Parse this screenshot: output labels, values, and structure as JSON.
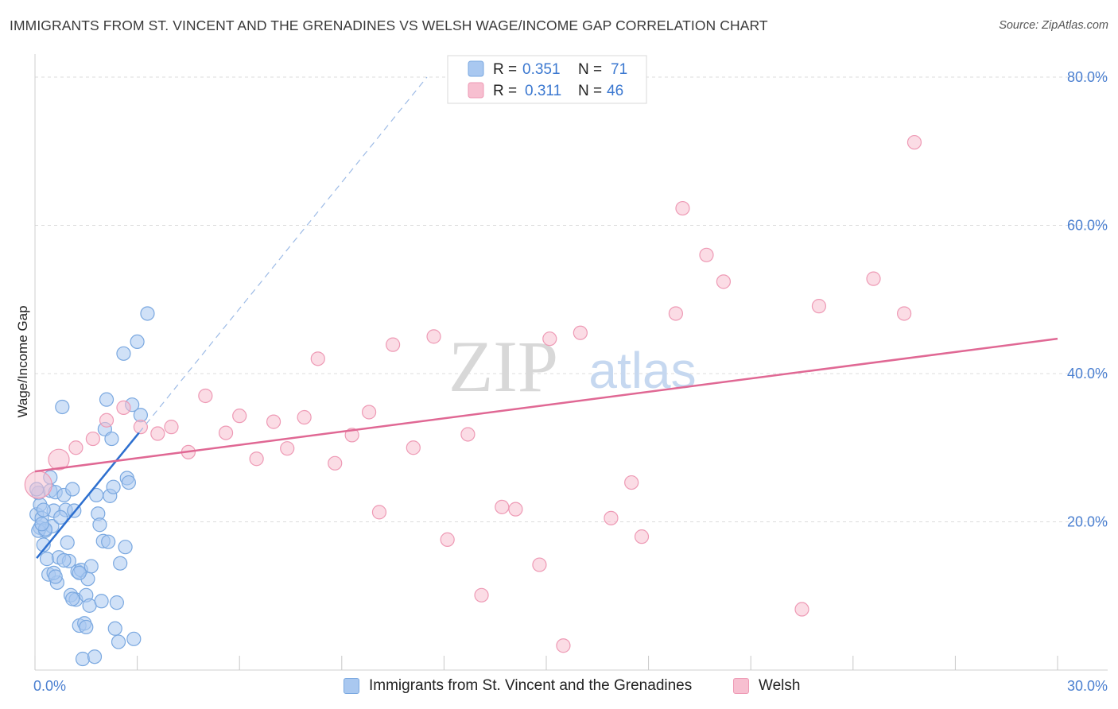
{
  "title": "IMMIGRANTS FROM ST. VINCENT AND THE GRENADINES VS WELSH WAGE/INCOME GAP CORRELATION CHART",
  "source": "Source: ZipAtlas.com",
  "watermark": {
    "zip": "ZIP",
    "atlas": "atlas"
  },
  "legend": {
    "r_label": "R =",
    "n_label": "N =",
    "rows": [
      {
        "series": "Immigrants from St. Vincent and the Grenadines",
        "r": "0.351",
        "n": "71"
      },
      {
        "series": "Welsh",
        "r": "0.311",
        "n": "46"
      }
    ]
  },
  "colors": {
    "blue_fill": "#a9c8f0",
    "blue_stroke": "#7aa8e0",
    "blue_line": "#2d6fcf",
    "pink_fill": "#f7bfd0",
    "pink_stroke": "#ee9ab5",
    "pink_line": "#e06894",
    "tick_text": "#4a7fd0",
    "grid": "#dcdcdc"
  },
  "chart_data": {
    "type": "scatter",
    "title": "IMMIGRANTS FROM ST. VINCENT AND THE GRENADINES VS WELSH WAGE/INCOME GAP CORRELATION CHART",
    "xlabel": "",
    "ylabel": "Wage/Income Gap",
    "xlim": [
      0,
      30
    ],
    "ylim": [
      0,
      80
    ],
    "x_tick_labels": [
      "0.0%",
      "30.0%"
    ],
    "y_ticks": [
      20,
      40,
      60,
      80
    ],
    "y_tick_labels": [
      "20.0%",
      "40.0%",
      "60.0%",
      "80.0%"
    ],
    "grid": true,
    "legend_position": "top-center",
    "series": [
      {
        "name": "Immigrants from St. Vincent and the Grenadines",
        "color": "#a9c8f0",
        "trend": {
          "x0": 0.05,
          "y0": 15.1,
          "x1": 3.05,
          "y1": 32.0,
          "dashed_to_x": 11.5,
          "dashed_to_y": 80.0
        },
        "points": [
          [
            0.05,
            21.0
          ],
          [
            0.1,
            23.9
          ],
          [
            0.15,
            19.2
          ],
          [
            0.2,
            20.5
          ],
          [
            0.25,
            16.9
          ],
          [
            0.3,
            18.8
          ],
          [
            0.35,
            15.0
          ],
          [
            0.4,
            12.9
          ],
          [
            0.45,
            24.2
          ],
          [
            0.5,
            19.4
          ],
          [
            0.55,
            21.5
          ],
          [
            0.6,
            24.0
          ],
          [
            0.65,
            11.8
          ],
          [
            0.7,
            15.2
          ],
          [
            0.8,
            35.5
          ],
          [
            0.85,
            23.6
          ],
          [
            0.9,
            21.6
          ],
          [
            0.95,
            17.2
          ],
          [
            1.0,
            14.7
          ],
          [
            1.05,
            10.1
          ],
          [
            1.1,
            24.4
          ],
          [
            1.15,
            21.5
          ],
          [
            1.2,
            9.5
          ],
          [
            1.25,
            13.3
          ],
          [
            1.3,
            6.0
          ],
          [
            1.35,
            13.5
          ],
          [
            1.4,
            1.5
          ],
          [
            1.45,
            6.3
          ],
          [
            1.5,
            10.1
          ],
          [
            1.55,
            12.3
          ],
          [
            1.6,
            8.7
          ],
          [
            1.65,
            14.0
          ],
          [
            1.75,
            1.8
          ],
          [
            1.8,
            23.6
          ],
          [
            1.85,
            21.1
          ],
          [
            1.9,
            19.6
          ],
          [
            1.95,
            9.3
          ],
          [
            2.0,
            17.4
          ],
          [
            2.05,
            32.5
          ],
          [
            2.1,
            36.5
          ],
          [
            2.15,
            17.3
          ],
          [
            2.2,
            23.5
          ],
          [
            2.25,
            31.2
          ],
          [
            2.3,
            24.7
          ],
          [
            2.35,
            5.6
          ],
          [
            2.4,
            9.1
          ],
          [
            2.45,
            3.8
          ],
          [
            2.5,
            14.4
          ],
          [
            2.6,
            42.7
          ],
          [
            2.65,
            16.6
          ],
          [
            2.7,
            25.9
          ],
          [
            2.75,
            25.3
          ],
          [
            2.85,
            35.8
          ],
          [
            2.9,
            4.2
          ],
          [
            3.0,
            44.3
          ],
          [
            3.1,
            34.4
          ],
          [
            3.3,
            48.1
          ],
          [
            0.1,
            18.8
          ],
          [
            0.15,
            22.3
          ],
          [
            0.25,
            21.6
          ],
          [
            0.3,
            19.0
          ],
          [
            0.45,
            26.0
          ],
          [
            0.55,
            13.1
          ],
          [
            0.6,
            12.6
          ],
          [
            0.75,
            20.6
          ],
          [
            0.85,
            14.8
          ],
          [
            1.1,
            9.6
          ],
          [
            1.3,
            13.1
          ],
          [
            1.5,
            5.8
          ],
          [
            0.05,
            24.4
          ],
          [
            0.2,
            19.7
          ]
        ]
      },
      {
        "name": "Welsh",
        "color": "#f7bfd0",
        "trend": {
          "x0": 0.0,
          "y0": 26.8,
          "x1": 30.0,
          "y1": 44.7
        },
        "points": [
          [
            0.1,
            25.0
          ],
          [
            0.7,
            28.4
          ],
          [
            1.2,
            30.0
          ],
          [
            1.7,
            31.2
          ],
          [
            2.1,
            33.7
          ],
          [
            2.6,
            35.4
          ],
          [
            3.1,
            32.8
          ],
          [
            3.6,
            31.9
          ],
          [
            4.0,
            32.8
          ],
          [
            4.5,
            29.4
          ],
          [
            5.0,
            37.0
          ],
          [
            5.6,
            32.0
          ],
          [
            6.0,
            34.3
          ],
          [
            6.5,
            28.5
          ],
          [
            7.0,
            33.5
          ],
          [
            7.4,
            29.9
          ],
          [
            7.9,
            34.1
          ],
          [
            8.3,
            42.0
          ],
          [
            8.8,
            27.9
          ],
          [
            9.3,
            31.7
          ],
          [
            9.8,
            34.8
          ],
          [
            10.1,
            21.3
          ],
          [
            10.5,
            43.9
          ],
          [
            11.1,
            30.0
          ],
          [
            11.7,
            45.0
          ],
          [
            12.1,
            17.6
          ],
          [
            12.7,
            31.8
          ],
          [
            13.1,
            10.1
          ],
          [
            13.7,
            22.0
          ],
          [
            14.1,
            21.7
          ],
          [
            14.8,
            14.2
          ],
          [
            15.1,
            44.7
          ],
          [
            15.5,
            3.3
          ],
          [
            16.0,
            45.5
          ],
          [
            16.9,
            20.5
          ],
          [
            17.5,
            25.3
          ],
          [
            17.8,
            18.0
          ],
          [
            18.8,
            48.1
          ],
          [
            19.0,
            62.3
          ],
          [
            19.7,
            56.0
          ],
          [
            20.2,
            52.4
          ],
          [
            22.5,
            8.2
          ],
          [
            23.0,
            49.1
          ],
          [
            24.6,
            52.8
          ],
          [
            25.5,
            48.1
          ],
          [
            25.8,
            71.2
          ]
        ]
      }
    ]
  }
}
